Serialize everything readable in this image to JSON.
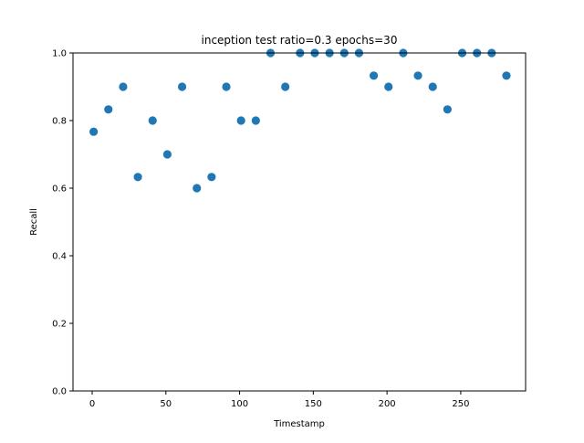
{
  "chart_data": {
    "type": "scatter",
    "title": "inception test ratio=0.3 epochs=30",
    "xlabel": "Timestamp",
    "ylabel": "Recall",
    "xlim": [
      -13,
      294
    ],
    "ylim": [
      0.0,
      1.0
    ],
    "xticks": [
      0,
      50,
      100,
      150,
      200,
      250
    ],
    "yticks": [
      0.0,
      0.2,
      0.4,
      0.6,
      0.8,
      1.0
    ],
    "xtick_labels": [
      "0",
      "50",
      "100",
      "150",
      "200",
      "250"
    ],
    "ytick_labels": [
      "0.0",
      "0.2",
      "0.4",
      "0.6",
      "0.8",
      "1.0"
    ],
    "grid": false,
    "marker_color": "#1f77b4",
    "series": [
      {
        "x": [
          1,
          11,
          21,
          31,
          41,
          51,
          61,
          71,
          81,
          91,
          101,
          111,
          121,
          131,
          141,
          151,
          161,
          171,
          181,
          191,
          201,
          211,
          221,
          231,
          241,
          251,
          261,
          271,
          281
        ],
        "y": [
          0.767,
          0.833,
          0.9,
          0.633,
          0.8,
          0.7,
          0.9,
          0.6,
          0.633,
          0.9,
          0.8,
          0.8,
          1.0,
          0.9,
          1.0,
          1.0,
          1.0,
          1.0,
          1.0,
          0.933,
          0.9,
          1.0,
          0.933,
          0.9,
          0.833,
          1.0,
          1.0,
          1.0,
          0.933
        ]
      }
    ]
  }
}
